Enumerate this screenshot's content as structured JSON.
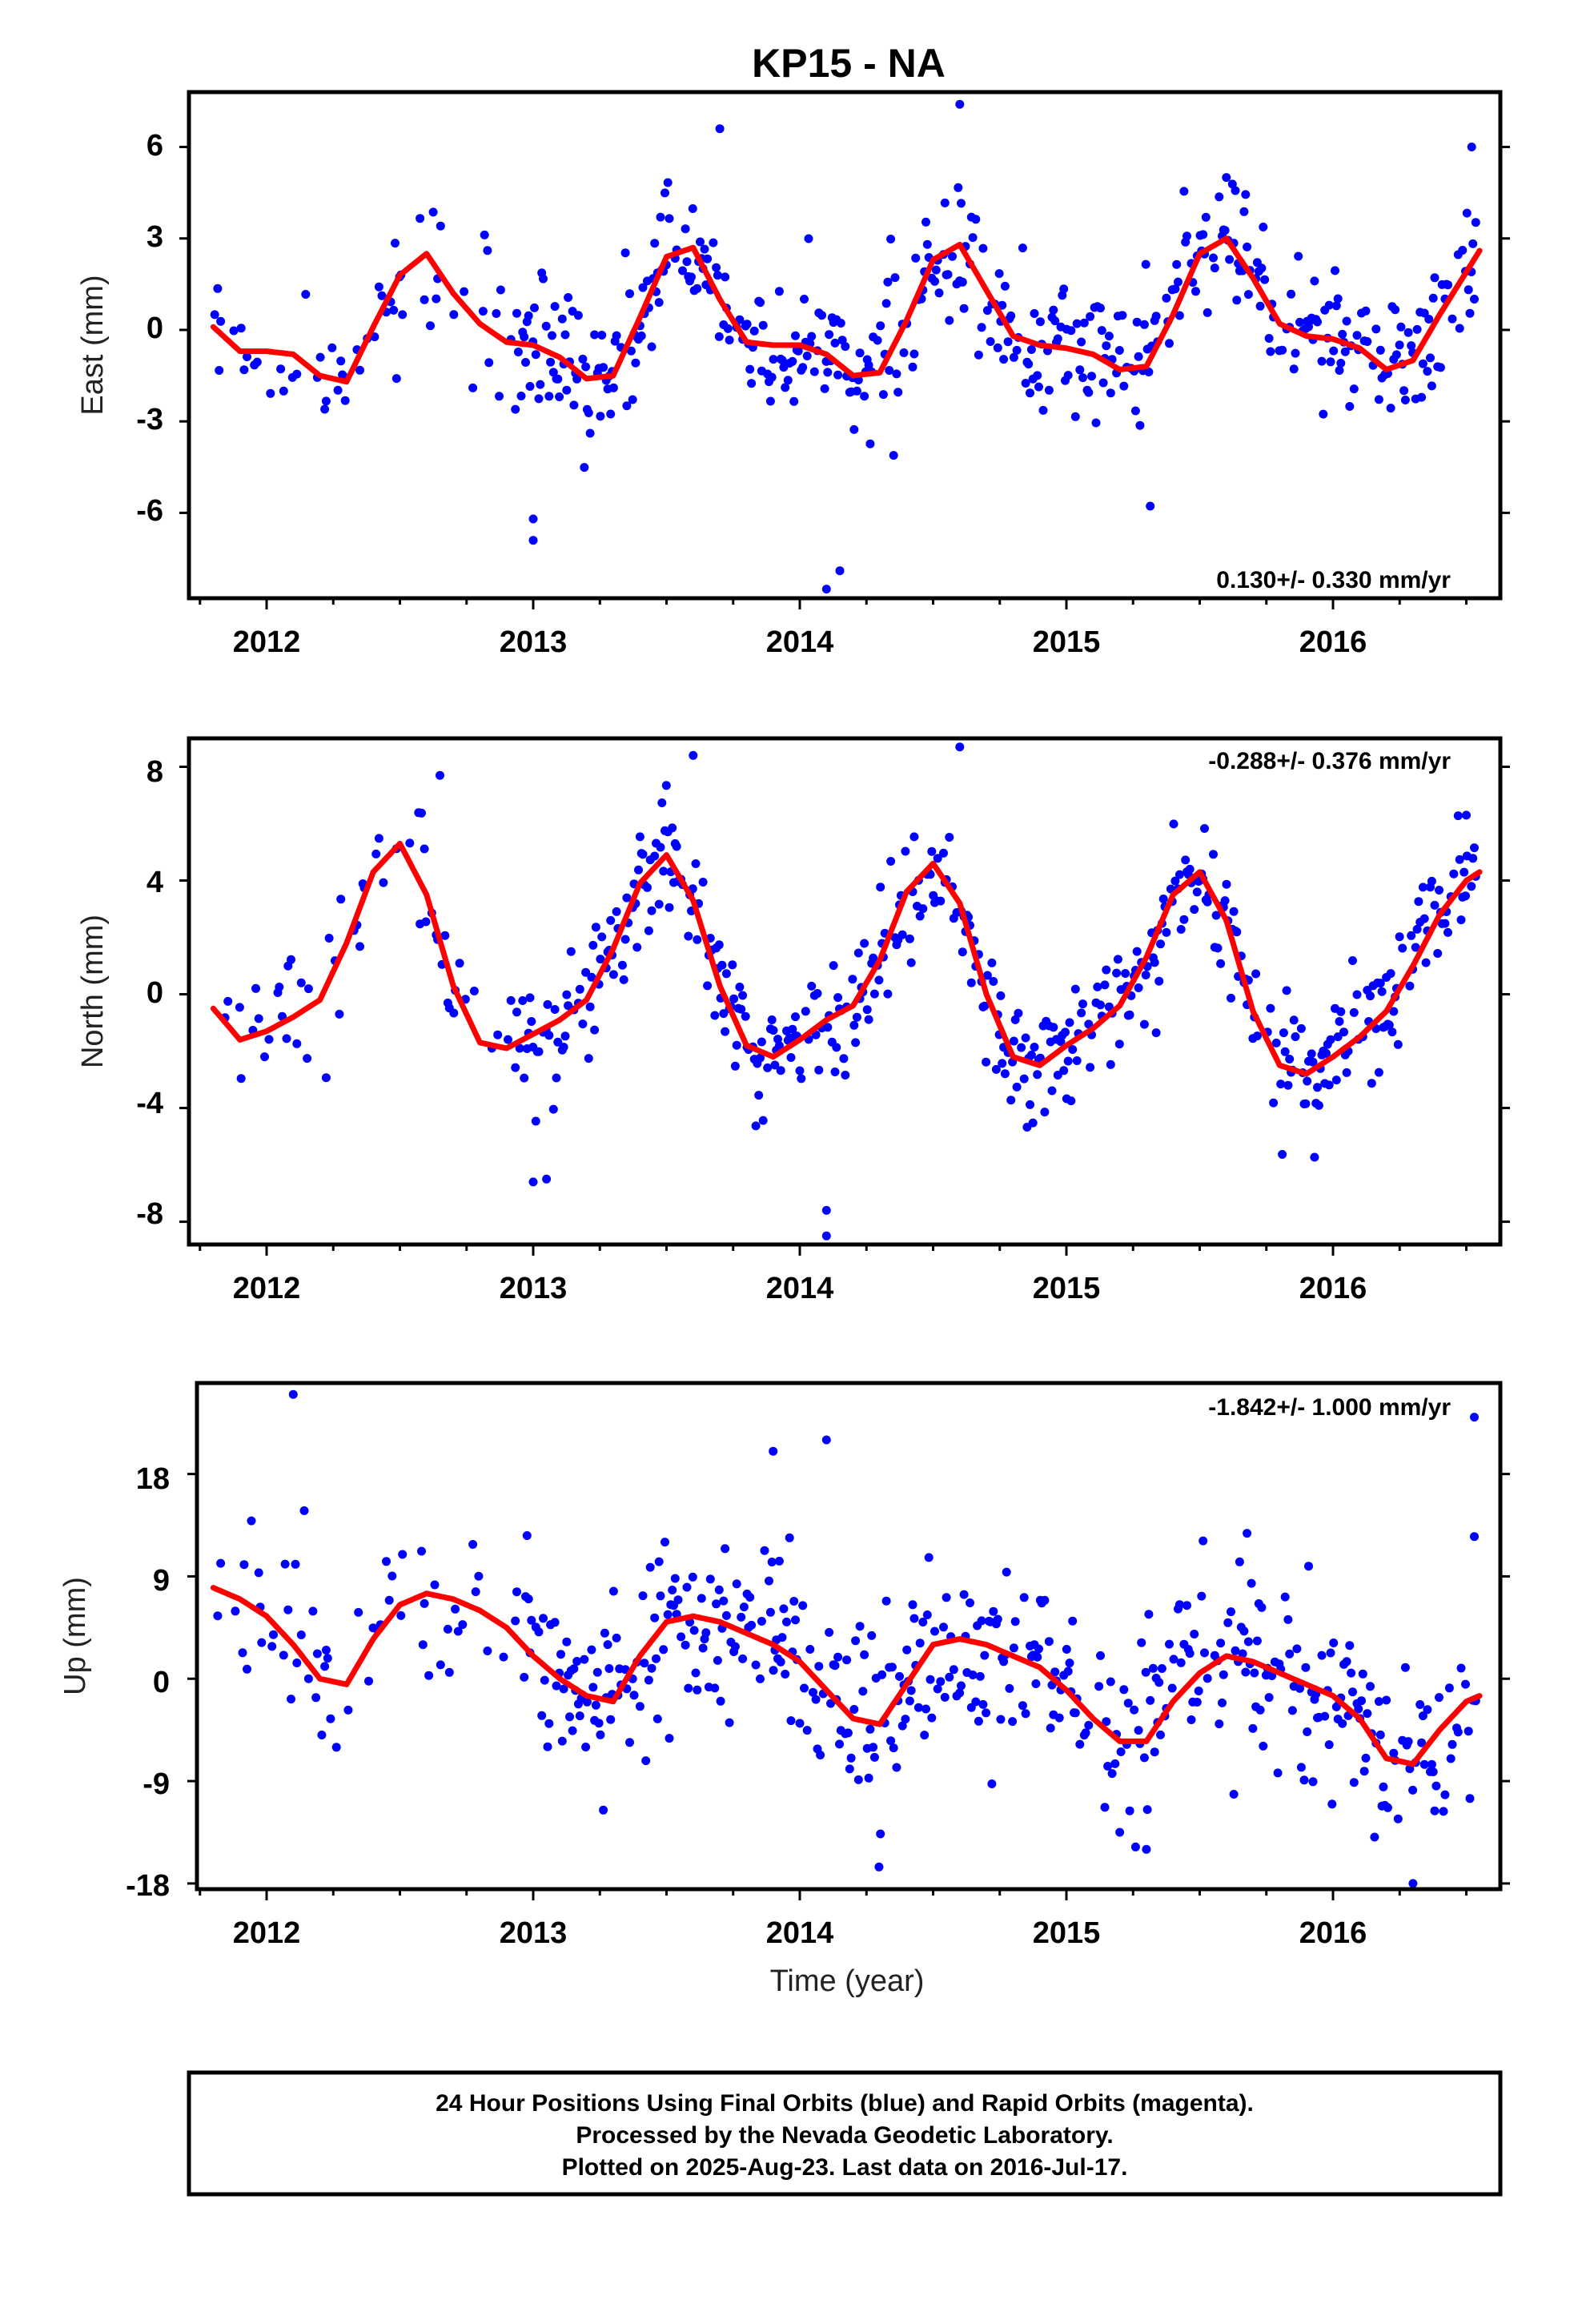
{
  "colors": {
    "final_orbits": "#0000ff",
    "rapid_orbits": "#ff00ff",
    "fit_line": "#ff0000"
  },
  "chart_data": {
    "type": "scatter",
    "title": "KP15 - NA",
    "xlabel": "Time (year)",
    "xlim": [
      2011.7,
      2016.62
    ],
    "x_ticks": [
      "2012",
      "2013",
      "2014",
      "2015",
      "2016"
    ],
    "panels": [
      {
        "name": "east",
        "ylabel": "East (mm)",
        "ylim": [
          -8.8,
          7.8
        ],
        "y_ticks": [
          "6",
          "3",
          "0",
          "-3",
          "-6"
        ],
        "rate_label": "0.130+/- 0.330 mm/yr",
        "fit": {
          "x": [
            2011.8,
            2011.9,
            2012.0,
            2012.1,
            2012.2,
            2012.3,
            2012.4,
            2012.5,
            2012.6,
            2012.7,
            2012.8,
            2012.9,
            2013.0,
            2013.1,
            2013.2,
            2013.3,
            2013.4,
            2013.5,
            2013.6,
            2013.7,
            2013.8,
            2013.9,
            2014.0,
            2014.1,
            2014.2,
            2014.3,
            2014.4,
            2014.5,
            2014.6,
            2014.7,
            2014.8,
            2014.9,
            2015.0,
            2015.1,
            2015.2,
            2015.3,
            2015.4,
            2015.5,
            2015.6,
            2015.7,
            2015.8,
            2015.9,
            2016.0,
            2016.1,
            2016.2,
            2016.3,
            2016.4,
            2016.5,
            2016.55
          ],
          "y": [
            0.1,
            -0.7,
            -0.7,
            -0.8,
            -1.5,
            -1.7,
            0.1,
            1.8,
            2.5,
            1.2,
            0.2,
            -0.4,
            -0.5,
            -0.9,
            -1.6,
            -1.5,
            0.4,
            2.4,
            2.7,
            1.0,
            -0.4,
            -0.5,
            -0.5,
            -0.8,
            -1.5,
            -1.4,
            0.3,
            2.3,
            2.8,
            1.3,
            -0.2,
            -0.5,
            -0.6,
            -0.8,
            -1.3,
            -1.2,
            0.5,
            2.5,
            3.0,
            1.7,
            0.2,
            -0.2,
            -0.3,
            -0.6,
            -1.3,
            -1.0,
            0.5,
            1.9,
            2.6
          ]
        },
        "scatter": {
          "sigma": 1.2,
          "extreme": [
            [
              2013.0,
              -6.2
            ],
            [
              2013.0,
              -6.9
            ],
            [
              2014.1,
              -8.5
            ],
            [
              2014.15,
              -7.9
            ],
            [
              2014.6,
              7.4
            ],
            [
              2016.52,
              6.0
            ],
            [
              2013.7,
              6.6
            ],
            [
              2015.6,
              5.0
            ]
          ]
        }
      },
      {
        "name": "north",
        "ylabel": "North (mm)",
        "ylim": [
          -8.8,
          9.0
        ],
        "y_ticks": [
          "8",
          "4",
          "0",
          "-4",
          "-8"
        ],
        "rate_label": "-0.288+/- 0.376 mm/yr",
        "fit": {
          "x": [
            2011.8,
            2011.9,
            2012.0,
            2012.1,
            2012.2,
            2012.3,
            2012.4,
            2012.5,
            2012.6,
            2012.7,
            2012.8,
            2012.9,
            2013.0,
            2013.1,
            2013.2,
            2013.3,
            2013.4,
            2013.5,
            2013.6,
            2013.7,
            2013.8,
            2013.9,
            2014.0,
            2014.1,
            2014.2,
            2014.3,
            2014.4,
            2014.5,
            2014.6,
            2014.7,
            2014.8,
            2014.9,
            2015.0,
            2015.1,
            2015.2,
            2015.3,
            2015.4,
            2015.5,
            2015.6,
            2015.7,
            2015.8,
            2015.9,
            2016.0,
            2016.1,
            2016.2,
            2016.3,
            2016.4,
            2016.5,
            2016.55
          ],
          "y": [
            -0.5,
            -1.6,
            -1.3,
            -0.8,
            -0.2,
            1.8,
            4.3,
            5.3,
            3.5,
            0.3,
            -1.7,
            -1.9,
            -1.4,
            -0.9,
            -0.2,
            1.6,
            3.9,
            4.9,
            3.3,
            0.3,
            -1.8,
            -2.2,
            -1.6,
            -0.9,
            -0.4,
            1.2,
            3.6,
            4.6,
            3.2,
            0.0,
            -2.2,
            -2.5,
            -1.8,
            -1.2,
            -0.4,
            1.3,
            3.5,
            4.3,
            2.6,
            -0.6,
            -2.5,
            -2.8,
            -2.2,
            -1.5,
            -0.6,
            1.0,
            2.8,
            4.0,
            4.3
          ]
        },
        "scatter": {
          "sigma": 1.1,
          "extreme": [
            [
              2013.0,
              -6.6
            ],
            [
              2013.05,
              -6.5
            ],
            [
              2014.1,
              -8.5
            ],
            [
              2014.1,
              -7.6
            ],
            [
              2014.6,
              8.7
            ],
            [
              2013.6,
              8.4
            ],
            [
              2012.65,
              7.7
            ],
            [
              2016.5,
              6.3
            ]
          ]
        }
      },
      {
        "name": "up",
        "ylabel": "Up (mm)",
        "ylim": [
          -18.5,
          26.0
        ],
        "y_ticks": [
          "18",
          "9",
          "0",
          "-9",
          "-18"
        ],
        "rate_label": "-1.842+/- 1.000 mm/yr",
        "fit": {
          "x": [
            2011.8,
            2011.9,
            2012.0,
            2012.1,
            2012.2,
            2012.3,
            2012.4,
            2012.5,
            2012.6,
            2012.7,
            2012.8,
            2012.9,
            2013.0,
            2013.1,
            2013.2,
            2013.3,
            2013.4,
            2013.5,
            2013.6,
            2013.7,
            2013.8,
            2013.9,
            2014.0,
            2014.1,
            2014.2,
            2014.3,
            2014.4,
            2014.5,
            2014.6,
            2014.7,
            2014.8,
            2014.9,
            2015.0,
            2015.1,
            2015.2,
            2015.3,
            2015.4,
            2015.5,
            2015.6,
            2015.7,
            2015.8,
            2015.9,
            2016.0,
            2016.1,
            2016.2,
            2016.3,
            2016.4,
            2016.5,
            2016.55
          ],
          "y": [
            8.0,
            7.0,
            5.5,
            3.0,
            0.0,
            -0.5,
            3.5,
            6.5,
            7.5,
            7.0,
            6.0,
            4.5,
            2.0,
            0.0,
            -1.5,
            -2.0,
            2.0,
            5.0,
            5.5,
            5.0,
            4.0,
            3.0,
            1.5,
            -1.0,
            -3.5,
            -4.0,
            -0.5,
            3.0,
            3.5,
            3.0,
            2.0,
            1.0,
            -1.0,
            -3.5,
            -5.5,
            -5.5,
            -2.0,
            0.5,
            2.0,
            1.5,
            0.5,
            -0.5,
            -1.5,
            -3.5,
            -7.0,
            -7.5,
            -4.5,
            -2.0,
            -1.5
          ]
        },
        "scatter": {
          "sigma": 4.0,
          "extreme": [
            [
              2012.1,
              25.0
            ],
            [
              2014.1,
              21.0
            ],
            [
              2013.9,
              20.0
            ],
            [
              2016.53,
              23.0
            ],
            [
              2016.53,
              12.5
            ],
            [
              2016.3,
              -18.0
            ],
            [
              2015.3,
              -15.0
            ],
            [
              2015.2,
              -13.5
            ]
          ]
        }
      }
    ]
  },
  "footer": {
    "line1": "24 Hour Positions Using Final Orbits (blue) and Rapid Orbits (magenta).",
    "line2": "Processed by the Nevada Geodetic Laboratory.",
    "line3": "Plotted on 2025-Aug-23. Last data on 2016-Jul-17."
  }
}
